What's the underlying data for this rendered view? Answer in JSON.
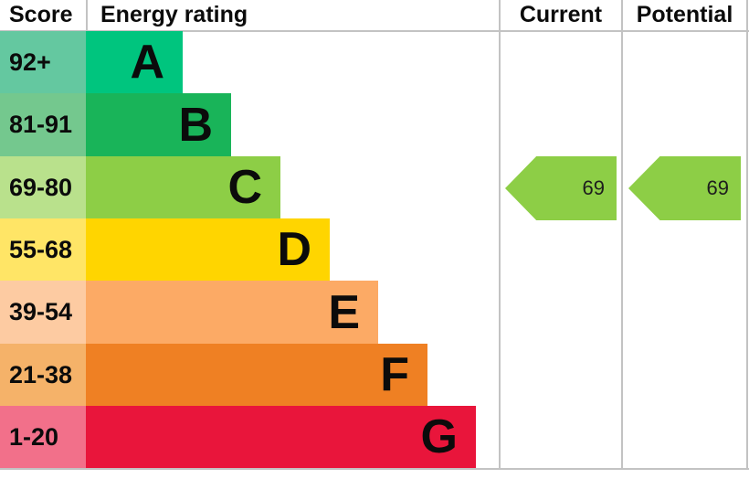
{
  "header": {
    "score": "Score",
    "energy_rating": "Energy rating",
    "current": "Current",
    "potential": "Potential"
  },
  "bands": [
    {
      "letter": "A",
      "range": "92+",
      "color": "#00c57e",
      "tint": "#64c8a0"
    },
    {
      "letter": "B",
      "range": "81-91",
      "color": "#19b459",
      "tint": "#74c88e"
    },
    {
      "letter": "C",
      "range": "69-80",
      "color": "#8dce46",
      "tint": "#b9e18c"
    },
    {
      "letter": "D",
      "range": "55-68",
      "color": "#ffd500",
      "tint": "#ffe566"
    },
    {
      "letter": "E",
      "range": "39-54",
      "color": "#fcaa65",
      "tint": "#fdcba2"
    },
    {
      "letter": "F",
      "range": "21-38",
      "color": "#ef8023",
      "tint": "#f5b269"
    },
    {
      "letter": "G",
      "range": "1-20",
      "color": "#e9153b",
      "tint": "#f2708a"
    }
  ],
  "current": {
    "value": "69",
    "band": "C",
    "color": "#8dce46"
  },
  "potential": {
    "value": "69",
    "band": "C",
    "color": "#8dce46"
  },
  "line_color": "#c3c3c3",
  "chart_data": {
    "type": "bar",
    "title": "Energy rating",
    "bands": [
      {
        "label": "A",
        "range": "92+",
        "min": 92,
        "max": 100
      },
      {
        "label": "B",
        "range": "81-91",
        "min": 81,
        "max": 91
      },
      {
        "label": "C",
        "range": "69-80",
        "min": 69,
        "max": 80
      },
      {
        "label": "D",
        "range": "55-68",
        "min": 55,
        "max": 68
      },
      {
        "label": "E",
        "range": "39-54",
        "min": 39,
        "max": 54
      },
      {
        "label": "F",
        "range": "21-38",
        "min": 21,
        "max": 38
      },
      {
        "label": "G",
        "range": "1-20",
        "min": 1,
        "max": 20
      }
    ],
    "columns": [
      "Score",
      "Energy rating",
      "Current",
      "Potential"
    ],
    "current": 69,
    "current_band": "C",
    "potential": 69,
    "potential_band": "C",
    "legend_position": "none",
    "grid": false
  }
}
